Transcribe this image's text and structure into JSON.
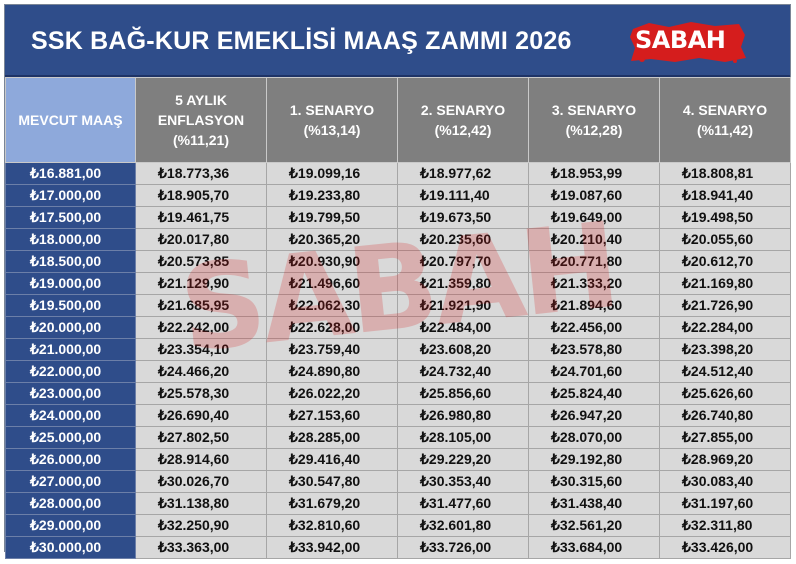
{
  "title": "SSK BAĞ-KUR EMEKLİSİ MAAŞ ZAMMI 2026",
  "brand": {
    "logo_text": "SABAH",
    "watermark_text": "SABAH",
    "color": "#d51d1d"
  },
  "colors": {
    "banner": "#2f4d8a",
    "header_first": "#8ea9db",
    "header": "#7f7f7f",
    "cell": "#d9d9d9"
  },
  "headers": [
    "MEVCUT MAAŞ",
    "5 AYLIK\nENFLASYON\n(%11,21)",
    "1. SENARYO\n(%13,14)",
    "2. SENARYO\n(%12,42)",
    "3. SENARYO\n(%12,28)",
    "4. SENARYO\n(%11,42)"
  ],
  "rows": [
    [
      "₺16.881,00",
      "₺18.773,36",
      "₺19.099,16",
      "₺18.977,62",
      "₺18.953,99",
      "₺18.808,81"
    ],
    [
      "₺17.000,00",
      "₺18.905,70",
      "₺19.233,80",
      "₺19.111,40",
      "₺19.087,60",
      "₺18.941,40"
    ],
    [
      "₺17.500,00",
      "₺19.461,75",
      "₺19.799,50",
      "₺19.673,50",
      "₺19.649,00",
      "₺19.498,50"
    ],
    [
      "₺18.000,00",
      "₺20.017,80",
      "₺20.365,20",
      "₺20.235,60",
      "₺20.210,40",
      "₺20.055,60"
    ],
    [
      "₺18.500,00",
      "₺20.573,85",
      "₺20.930,90",
      "₺20.797,70",
      "₺20.771,80",
      "₺20.612,70"
    ],
    [
      "₺19.000,00",
      "₺21.129,90",
      "₺21.496,60",
      "₺21.359,80",
      "₺21.333,20",
      "₺21.169,80"
    ],
    [
      "₺19.500,00",
      "₺21.685,95",
      "₺22.062,30",
      "₺21.921,90",
      "₺21.894,60",
      "₺21.726,90"
    ],
    [
      "₺20.000,00",
      "₺22.242,00",
      "₺22.628,00",
      "₺22.484,00",
      "₺22.456,00",
      "₺22.284,00"
    ],
    [
      "₺21.000,00",
      "₺23.354,10",
      "₺23.759,40",
      "₺23.608,20",
      "₺23.578,80",
      "₺23.398,20"
    ],
    [
      "₺22.000,00",
      "₺24.466,20",
      "₺24.890,80",
      "₺24.732,40",
      "₺24.701,60",
      "₺24.512,40"
    ],
    [
      "₺23.000,00",
      "₺25.578,30",
      "₺26.022,20",
      "₺25.856,60",
      "₺25.824,40",
      "₺25.626,60"
    ],
    [
      "₺24.000,00",
      "₺26.690,40",
      "₺27.153,60",
      "₺26.980,80",
      "₺26.947,20",
      "₺26.740,80"
    ],
    [
      "₺25.000,00",
      "₺27.802,50",
      "₺28.285,00",
      "₺28.105,00",
      "₺28.070,00",
      "₺27.855,00"
    ],
    [
      "₺26.000,00",
      "₺28.914,60",
      "₺29.416,40",
      "₺29.229,20",
      "₺29.192,80",
      "₺28.969,20"
    ],
    [
      "₺27.000,00",
      "₺30.026,70",
      "₺30.547,80",
      "₺30.353,40",
      "₺30.315,60",
      "₺30.083,40"
    ],
    [
      "₺28.000,00",
      "₺31.138,80",
      "₺31.679,20",
      "₺31.477,60",
      "₺31.438,40",
      "₺31.197,60"
    ],
    [
      "₺29.000,00",
      "₺32.250,90",
      "₺32.810,60",
      "₺32.601,80",
      "₺32.561,20",
      "₺32.311,80"
    ],
    [
      "₺30.000,00",
      "₺33.363,00",
      "₺33.942,00",
      "₺33.726,00",
      "₺33.684,00",
      "₺33.426,00"
    ]
  ]
}
